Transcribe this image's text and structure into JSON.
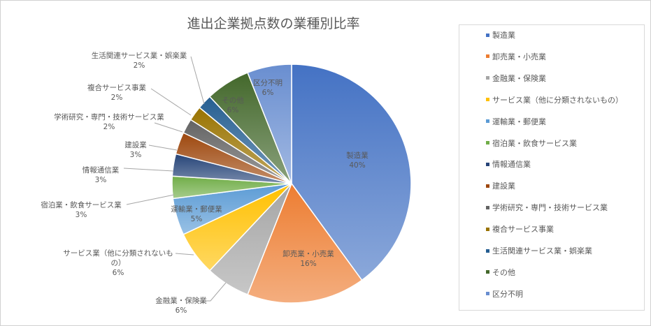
{
  "chart_data": {
    "type": "pie",
    "title": "進出企業拠点数の業種別比率",
    "slices": [
      {
        "name": "製造業",
        "value": 40,
        "label": "40%",
        "color": "#4472c4"
      },
      {
        "name": "卸売業・小売業",
        "value": 16,
        "label": "16%",
        "color": "#ed7d31"
      },
      {
        "name": "金融業・保険業",
        "value": 6,
        "label": "6%",
        "color": "#a5a5a5"
      },
      {
        "name": "サービス業（他に分類されないもの）",
        "value": 6,
        "label": "6%",
        "color": "#ffc000"
      },
      {
        "name": "運輸業・郵便業",
        "value": 5,
        "label": "5%",
        "color": "#5b9bd5"
      },
      {
        "name": "宿泊業・飲食サービス業",
        "value": 3,
        "label": "3%",
        "color": "#70ad47"
      },
      {
        "name": "情報通信業",
        "value": 3,
        "label": "3%",
        "color": "#264478"
      },
      {
        "name": "建設業",
        "value": 3,
        "label": "3%",
        "color": "#9e480e"
      },
      {
        "name": "学術研究・専門・技術サービス業",
        "value": 2,
        "label": "2%",
        "color": "#636363"
      },
      {
        "name": "複合サービス事業",
        "value": 2,
        "label": "2%",
        "color": "#997300"
      },
      {
        "name": "生活関連サービス業・娯楽業",
        "value": 2,
        "label": "2%",
        "color": "#255e91"
      },
      {
        "name": "その他",
        "value": 6,
        "label": "6%",
        "color": "#43682b"
      },
      {
        "name": "区分不明",
        "value": 6,
        "label": "6%",
        "color": "#698ed0"
      }
    ],
    "data_label_text": {
      "サービス業（他に分類されないもの）": [
        "サービス業（他に分類されないも",
        "の）"
      ]
    },
    "legend_position": "right"
  }
}
